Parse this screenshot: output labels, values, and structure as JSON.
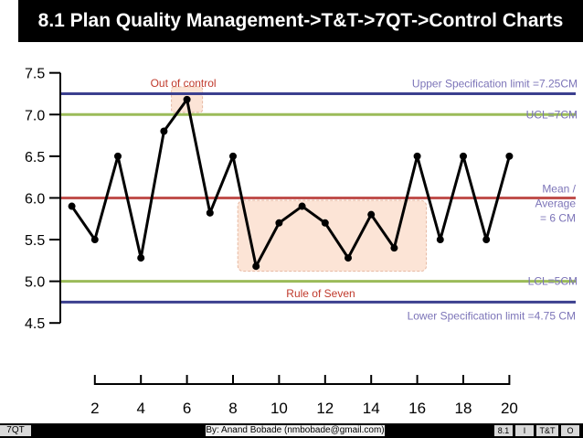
{
  "title": "8.1 Plan Quality Management->T&T->7QT->Control Charts",
  "footer": {
    "left": "7QT",
    "center": "By: Anand Bobade (nmbobade@gmail.com)",
    "box1": "8.1",
    "box2": "I",
    "box3": "T&T",
    "box4": "O"
  },
  "chart_data": {
    "type": "line",
    "x": [
      1,
      2,
      3,
      4,
      5,
      6,
      7,
      8,
      9,
      10,
      11,
      12,
      13,
      14,
      15,
      16,
      17,
      18,
      19,
      20
    ],
    "series": [
      {
        "values": [
          5.9,
          5.5,
          6.5,
          5.28,
          6.8,
          7.18,
          5.82,
          6.5,
          5.18,
          5.7,
          5.9,
          5.7,
          5.28,
          5.8,
          5.4,
          6.5,
          5.5,
          6.5,
          5.5,
          6.5
        ]
      }
    ],
    "x_ticks": [
      2,
      4,
      6,
      8,
      10,
      12,
      14,
      16,
      18,
      20
    ],
    "y_ticks": [
      4.5,
      5.0,
      5.5,
      6.0,
      6.5,
      7.0,
      7.5
    ],
    "y_tick_labels": [
      "4.5",
      "5.0",
      "5.5",
      "6.0",
      "6.5",
      "7.0",
      "7.5"
    ],
    "xlim": [
      0.5,
      20.5
    ],
    "ylim": [
      4.25,
      7.65
    ],
    "reference_lines": [
      {
        "y": 7.25,
        "label": "Upper Specification limit =7.25CM",
        "color": "#3b3f8f"
      },
      {
        "y": 7.0,
        "label": "UCL=7CM",
        "color": "#9bbb59"
      },
      {
        "y": 6.0,
        "label": "Mean / Average = 6 CM",
        "color": "#c0504d"
      },
      {
        "y": 5.0,
        "label": "LCL=5CM",
        "color": "#9bbb59"
      },
      {
        "y": 4.75,
        "label": "Lower Specification limit =4.75 CM",
        "color": "#3b3f8f"
      }
    ],
    "annotations": {
      "out_of_control": "Out of control",
      "rule_of_seven": "Rule of Seven"
    },
    "label_color": "#7c74b8",
    "annotation_color": "#c0392b",
    "highlight_fill": "#fce4d6"
  }
}
